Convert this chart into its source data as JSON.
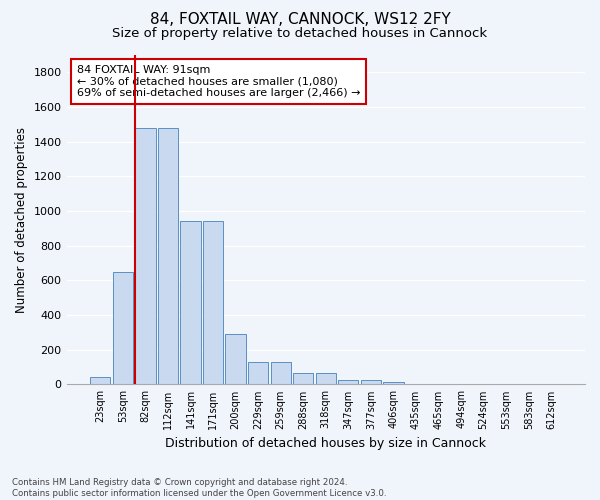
{
  "title": "84, FOXTAIL WAY, CANNOCK, WS12 2FY",
  "subtitle": "Size of property relative to detached houses in Cannock",
  "xlabel": "Distribution of detached houses by size in Cannock",
  "ylabel": "Number of detached properties",
  "bar_labels": [
    "23sqm",
    "53sqm",
    "82sqm",
    "112sqm",
    "141sqm",
    "171sqm",
    "200sqm",
    "229sqm",
    "259sqm",
    "288sqm",
    "318sqm",
    "347sqm",
    "377sqm",
    "406sqm",
    "435sqm",
    "465sqm",
    "494sqm",
    "524sqm",
    "553sqm",
    "583sqm",
    "612sqm"
  ],
  "bar_values": [
    40,
    650,
    1480,
    1480,
    940,
    940,
    290,
    130,
    130,
    65,
    65,
    25,
    25,
    15,
    0,
    0,
    0,
    0,
    0,
    0,
    0
  ],
  "bar_color": "#c9d9f0",
  "bar_edge_color": "#5a8fc3",
  "red_line_index": 2,
  "ylim": [
    0,
    1900
  ],
  "yticks": [
    0,
    200,
    400,
    600,
    800,
    1000,
    1200,
    1400,
    1600,
    1800
  ],
  "annotation_text": "84 FOXTAIL WAY: 91sqm\n← 30% of detached houses are smaller (1,080)\n69% of semi-detached houses are larger (2,466) →",
  "annotation_box_color": "#ffffff",
  "annotation_box_edge_color": "#cc0000",
  "footer_line1": "Contains HM Land Registry data © Crown copyright and database right 2024.",
  "footer_line2": "Contains public sector information licensed under the Open Government Licence v3.0.",
  "background_color": "#f0f4fb",
  "grid_color": "#ffffff",
  "title_fontsize": 11,
  "subtitle_fontsize": 9.5
}
